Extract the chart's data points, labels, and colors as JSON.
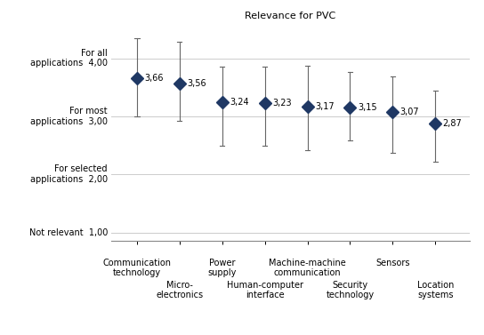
{
  "title": "Relevance for PVC",
  "x_positions": [
    1,
    2,
    3,
    4,
    5,
    6,
    7,
    8
  ],
  "means": [
    3.66,
    3.56,
    3.24,
    3.23,
    3.17,
    3.15,
    3.07,
    2.87
  ],
  "upper_errors": [
    0.69,
    0.72,
    0.62,
    0.62,
    0.7,
    0.62,
    0.62,
    0.57
  ],
  "lower_errors": [
    0.66,
    0.63,
    0.74,
    0.73,
    0.75,
    0.57,
    0.7,
    0.65
  ],
  "ytick_vals": [
    1.0,
    2.0,
    3.0,
    4.0
  ],
  "ytick_text": [
    "Not relevant  1,00",
    "For selected\napplications  2,00",
    "For most\napplications  3,00",
    "For all\napplications  4,00"
  ],
  "ylim": [
    0.85,
    4.6
  ],
  "xlim": [
    0.4,
    8.8
  ],
  "top_labels": {
    "1": "Communication\ntechnology",
    "3": "Power\nsupply",
    "5": "Machine-machine\ncommunication",
    "7": "Sensors"
  },
  "bot_labels": {
    "2": "Micro-\nelectronics",
    "4": "Human-computer\ninterface",
    "6": "Security\ntechnology",
    "8": "Location\nsystems"
  },
  "marker_color": "#1F3864",
  "marker_size": 7,
  "line_color": "#666666",
  "cap_size": 0.055,
  "grid_color": "#cccccc",
  "bg_color": "#ffffff",
  "title_fontsize": 8,
  "label_fontsize": 7,
  "value_fontsize": 7,
  "ytick_fontsize": 7
}
